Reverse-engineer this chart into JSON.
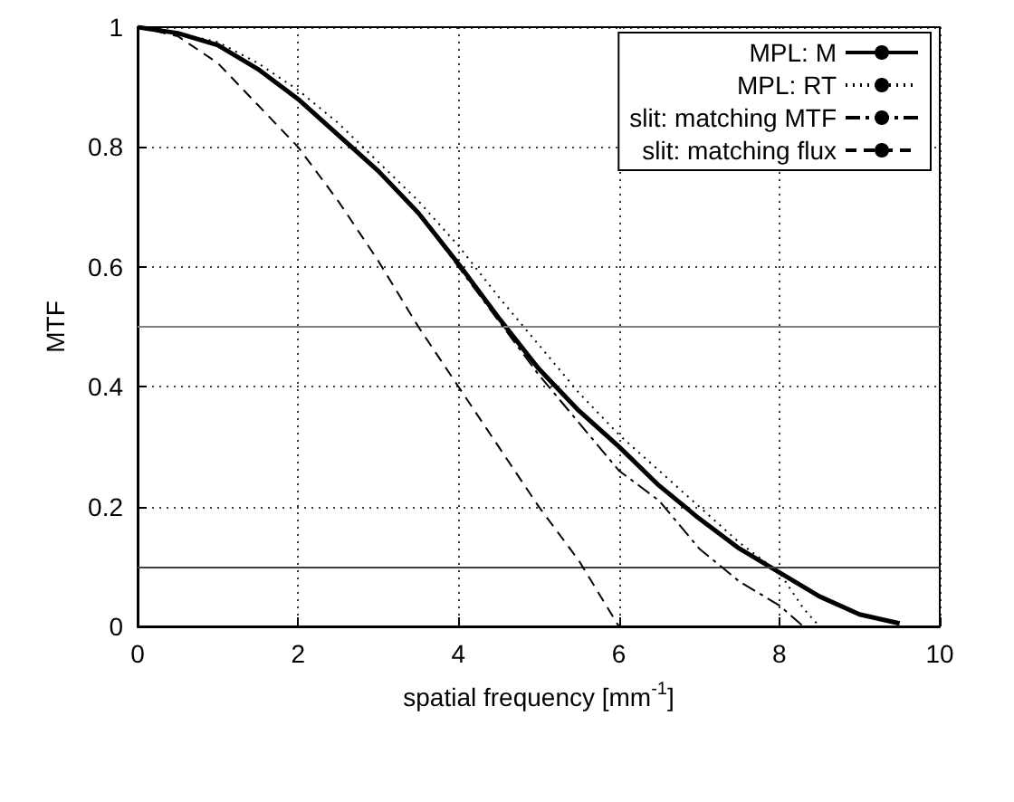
{
  "chart_data": {
    "type": "line",
    "xlabel": "spatial frequency [mm$^{-1}$]",
    "ylabel": "MTF",
    "xlim": [
      0,
      10
    ],
    "ylim": [
      0,
      1
    ],
    "xticks": [
      0,
      2,
      4,
      6,
      8,
      10
    ],
    "yticks": [
      0,
      0.2,
      0.4,
      0.6,
      0.8,
      1
    ],
    "grid": true,
    "legend": "top right",
    "marker": "none",
    "series": [
      {
        "name": "MPL: M",
        "color": "#000000",
        "line_style": "solid",
        "x": [
          0,
          0.5,
          1,
          1.5,
          2,
          2.5,
          3,
          3.5,
          4,
          4.5,
          5,
          5.5,
          6,
          6.5,
          7,
          7.5,
          8,
          8.5,
          9,
          9.5
        ],
        "values": [
          1,
          0.99,
          0.97,
          0.93,
          0.88,
          0.82,
          0.76,
          0.69,
          0.605,
          0.515,
          0.43,
          0.36,
          0.3,
          0.235,
          0.18,
          0.13,
          0.09,
          0.05,
          0.02,
          0.005
        ]
      },
      {
        "name": "MPL: RT",
        "color": "#000000",
        "line_style": "dotted",
        "x": [
          0,
          0.5,
          1,
          1.5,
          2,
          2.5,
          3,
          3.5,
          4,
          4.5,
          5,
          5.5,
          6,
          6.5,
          7,
          7.5,
          8,
          8.3,
          8.5
        ],
        "values": [
          1,
          0.99,
          0.975,
          0.94,
          0.895,
          0.84,
          0.775,
          0.71,
          0.635,
          0.55,
          0.47,
          0.39,
          0.32,
          0.26,
          0.2,
          0.14,
          0.09,
          0.03,
          0
        ]
      },
      {
        "name": "slit: matching MTF",
        "color": "#000000",
        "line_style": "dashdot",
        "x": [
          0,
          0.5,
          1,
          1.5,
          2,
          2.5,
          3,
          3.5,
          4,
          4.5,
          5,
          5.5,
          6,
          6.5,
          7,
          7.5,
          8,
          8.3
        ],
        "values": [
          1,
          0.99,
          0.97,
          0.93,
          0.88,
          0.82,
          0.76,
          0.69,
          0.6,
          0.51,
          0.42,
          0.34,
          0.26,
          0.21,
          0.13,
          0.075,
          0.035,
          0
        ]
      },
      {
        "name": "slit: matching flux",
        "color": "#000000",
        "line_style": "dashed",
        "x": [
          0,
          0.5,
          1,
          1.5,
          2,
          2.5,
          3,
          3.5,
          4,
          4.5,
          5,
          5.5,
          6
        ],
        "values": [
          1,
          0.985,
          0.94,
          0.87,
          0.8,
          0.71,
          0.61,
          0.5,
          0.4,
          0.3,
          0.2,
          0.11,
          0
        ]
      }
    ],
    "ref_lines": [
      {
        "axis": "y",
        "value": 0.5,
        "color": "#808080"
      },
      {
        "axis": "y",
        "value": 0.1,
        "color": "#404040"
      }
    ]
  }
}
